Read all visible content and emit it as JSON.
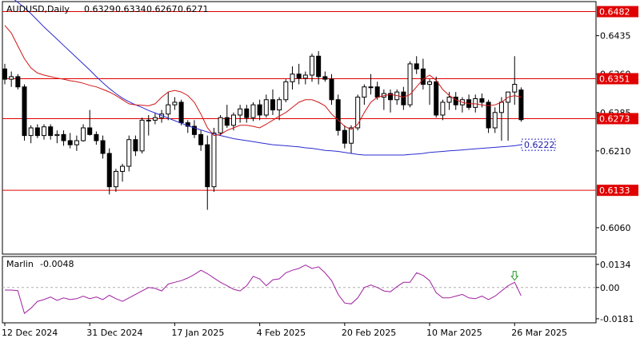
{
  "chart_data": [
    {
      "type": "candlestick",
      "header": {
        "symbol": "AUDUSD,Daily",
        "ohlc": [
          "0.6329",
          "0.6334",
          "0.6267",
          "0.6271"
        ]
      },
      "ylim": [
        0.601,
        0.65
      ],
      "y_ticks": [
        {
          "value": 0.6435,
          "label": "0.6435"
        },
        {
          "value": 0.636,
          "label": "0.6360"
        },
        {
          "value": 0.6285,
          "label": "0.6285"
        },
        {
          "value": 0.621,
          "label": "0.6210"
        },
        {
          "value": 0.606,
          "label": "0.6060"
        }
      ],
      "levels": [
        {
          "value": 0.6482,
          "label": "0.6482"
        },
        {
          "value": 0.6351,
          "label": "0.6351"
        },
        {
          "value": 0.6273,
          "label": "0.6273"
        },
        {
          "value": 0.6133,
          "label": "0.6133"
        }
      ],
      "ma_projection_label": "0.6222",
      "x_labels": [
        "12 Dec 2024",
        "31 Dec 2024",
        "17 Jan 2025",
        "4 Feb 2025",
        "20 Feb 2025",
        "10 Mar 2025",
        "26 Mar 2025"
      ],
      "x_label_index": [
        0,
        13,
        26,
        39,
        52,
        65,
        78
      ],
      "candles": [
        [
          0.637,
          0.638,
          0.634,
          0.635
        ],
        [
          0.635,
          0.6365,
          0.6335,
          0.6355
        ],
        [
          0.6355,
          0.636,
          0.633,
          0.6335
        ],
        [
          0.6335,
          0.634,
          0.623,
          0.624
        ],
        [
          0.624,
          0.626,
          0.6225,
          0.6255
        ],
        [
          0.6255,
          0.6262,
          0.6235,
          0.624
        ],
        [
          0.624,
          0.6262,
          0.6232,
          0.6257
        ],
        [
          0.6257,
          0.6262,
          0.6232,
          0.624
        ],
        [
          0.624,
          0.625,
          0.6225,
          0.6242
        ],
        [
          0.6242,
          0.625,
          0.622,
          0.623
        ],
        [
          0.623,
          0.6245,
          0.6215,
          0.6222
        ],
        [
          0.6222,
          0.624,
          0.621,
          0.623
        ],
        [
          0.623,
          0.6262,
          0.6228,
          0.6255
        ],
        [
          0.6255,
          0.629,
          0.624,
          0.6242
        ],
        [
          0.6242,
          0.6248,
          0.6222,
          0.623
        ],
        [
          0.623,
          0.624,
          0.6195,
          0.6205
        ],
        [
          0.6205,
          0.6215,
          0.6125,
          0.614
        ],
        [
          0.614,
          0.6175,
          0.613,
          0.617
        ],
        [
          0.617,
          0.6185,
          0.615,
          0.618
        ],
        [
          0.618,
          0.624,
          0.617,
          0.6232
        ],
        [
          0.6232,
          0.624,
          0.62,
          0.621
        ],
        [
          0.621,
          0.6275,
          0.6205,
          0.627
        ],
        [
          0.627,
          0.628,
          0.624,
          0.627
        ],
        [
          0.627,
          0.6285,
          0.6262,
          0.6275
        ],
        [
          0.6275,
          0.629,
          0.6265,
          0.6282
        ],
        [
          0.6282,
          0.6325,
          0.627,
          0.63
        ],
        [
          0.63,
          0.6315,
          0.629,
          0.6305
        ],
        [
          0.6305,
          0.631,
          0.626,
          0.6265
        ],
        [
          0.6265,
          0.627,
          0.6245,
          0.6258
        ],
        [
          0.6258,
          0.627,
          0.6235,
          0.6242
        ],
        [
          0.6242,
          0.625,
          0.621,
          0.6222
        ],
        [
          0.6222,
          0.624,
          0.6095,
          0.614
        ],
        [
          0.614,
          0.6255,
          0.613,
          0.6245
        ],
        [
          0.6245,
          0.628,
          0.624,
          0.6275
        ],
        [
          0.6275,
          0.63,
          0.6255,
          0.626
        ],
        [
          0.626,
          0.6285,
          0.625,
          0.628
        ],
        [
          0.628,
          0.63,
          0.6265,
          0.6292
        ],
        [
          0.6292,
          0.63,
          0.6265,
          0.6275
        ],
        [
          0.6275,
          0.6305,
          0.6268,
          0.63
        ],
        [
          0.63,
          0.631,
          0.627,
          0.628
        ],
        [
          0.628,
          0.632,
          0.6275,
          0.631
        ],
        [
          0.631,
          0.633,
          0.628,
          0.629
        ],
        [
          0.629,
          0.6315,
          0.627,
          0.631
        ],
        [
          0.631,
          0.635,
          0.6305,
          0.6345
        ],
        [
          0.6345,
          0.6375,
          0.633,
          0.636
        ],
        [
          0.636,
          0.638,
          0.634,
          0.6352
        ],
        [
          0.6352,
          0.6365,
          0.634,
          0.6358
        ],
        [
          0.6358,
          0.64,
          0.6345,
          0.6395
        ],
        [
          0.6395,
          0.6405,
          0.634,
          0.6355
        ],
        [
          0.6355,
          0.6365,
          0.6345,
          0.635
        ],
        [
          0.635,
          0.636,
          0.63,
          0.631
        ],
        [
          0.631,
          0.632,
          0.624,
          0.625
        ],
        [
          0.625,
          0.626,
          0.6215,
          0.6225
        ],
        [
          0.6225,
          0.626,
          0.6205,
          0.6255
        ],
        [
          0.6255,
          0.632,
          0.625,
          0.6315
        ],
        [
          0.6315,
          0.634,
          0.63,
          0.6335
        ],
        [
          0.6335,
          0.636,
          0.632,
          0.6335
        ],
        [
          0.6335,
          0.6345,
          0.631,
          0.6315
        ],
        [
          0.6315,
          0.633,
          0.629,
          0.6322
        ],
        [
          0.6322,
          0.633,
          0.6285,
          0.631
        ],
        [
          0.631,
          0.633,
          0.63,
          0.6325
        ],
        [
          0.6325,
          0.6335,
          0.629,
          0.63
        ],
        [
          0.63,
          0.6385,
          0.6295,
          0.638
        ],
        [
          0.638,
          0.6395,
          0.636,
          0.637
        ],
        [
          0.637,
          0.639,
          0.633,
          0.634
        ],
        [
          0.634,
          0.635,
          0.63,
          0.6345
        ],
        [
          0.6345,
          0.6355,
          0.6275,
          0.628
        ],
        [
          0.628,
          0.631,
          0.627,
          0.6305
        ],
        [
          0.6305,
          0.6325,
          0.629,
          0.6315
        ],
        [
          0.6315,
          0.6325,
          0.629,
          0.63
        ],
        [
          0.63,
          0.6315,
          0.6285,
          0.631
        ],
        [
          0.631,
          0.632,
          0.629,
          0.6295
        ],
        [
          0.6295,
          0.632,
          0.6285,
          0.6312
        ],
        [
          0.6312,
          0.6322,
          0.6295,
          0.6305
        ],
        [
          0.6305,
          0.631,
          0.6245,
          0.6255
        ],
        [
          0.6255,
          0.6295,
          0.6245,
          0.6285
        ],
        [
          0.6285,
          0.6315,
          0.623,
          0.6305
        ],
        [
          0.6305,
          0.6325,
          0.623,
          0.6325
        ],
        [
          0.6325,
          0.6395,
          0.63,
          0.634
        ],
        [
          0.6329,
          0.6334,
          0.6267,
          0.6271
        ]
      ],
      "ma_fast": [
        0.6455,
        0.644,
        0.6415,
        0.639,
        0.6372,
        0.6362,
        0.6358,
        0.6355,
        0.6352,
        0.635,
        0.6347,
        0.6345,
        0.6342,
        0.6338,
        0.6335,
        0.633,
        0.6325,
        0.6318,
        0.631,
        0.6302,
        0.63,
        0.6299,
        0.6298,
        0.6302,
        0.6315,
        0.6325,
        0.6328,
        0.6325,
        0.6318,
        0.6305,
        0.6282,
        0.6255,
        0.624,
        0.6242,
        0.625,
        0.6255,
        0.626,
        0.626,
        0.6258,
        0.6255,
        0.6262,
        0.627,
        0.6278,
        0.6285,
        0.6295,
        0.6305,
        0.631,
        0.631,
        0.6305,
        0.6298,
        0.6282,
        0.627,
        0.6258,
        0.6252,
        0.6262,
        0.6285,
        0.6305,
        0.6315,
        0.6318,
        0.632,
        0.6318,
        0.6315,
        0.632,
        0.6335,
        0.635,
        0.6358,
        0.6348,
        0.633,
        0.6318,
        0.631,
        0.6305,
        0.6302,
        0.6302,
        0.63,
        0.6298,
        0.63,
        0.6305,
        0.6315,
        0.6318,
        0.6315
      ],
      "ma_slow": [
        0.652,
        0.651,
        0.65,
        0.649,
        0.6478,
        0.6465,
        0.6452,
        0.644,
        0.6428,
        0.6416,
        0.6404,
        0.6392,
        0.638,
        0.6368,
        0.6355,
        0.6343,
        0.6332,
        0.6322,
        0.6313,
        0.6306,
        0.63,
        0.6295,
        0.6289,
        0.6284,
        0.6279,
        0.6274,
        0.6269,
        0.6264,
        0.6259,
        0.6255,
        0.6251,
        0.6247,
        0.6243,
        0.624,
        0.6237,
        0.6234,
        0.6232,
        0.623,
        0.6228,
        0.6226,
        0.6224,
        0.6222,
        0.6221,
        0.622,
        0.6219,
        0.6218,
        0.6216,
        0.6215,
        0.6213,
        0.6211,
        0.621,
        0.6209,
        0.6207,
        0.6205,
        0.6203,
        0.6202,
        0.6202,
        0.6202,
        0.6202,
        0.6202,
        0.6202,
        0.6202,
        0.6203,
        0.6204,
        0.6205,
        0.6207,
        0.6208,
        0.6209,
        0.621,
        0.6211,
        0.6212,
        0.6213,
        0.6214,
        0.6215,
        0.6216,
        0.6217,
        0.6218,
        0.6219,
        0.622,
        0.6222
      ],
      "ma_projection_end": 0.6222
    },
    {
      "type": "line",
      "indicator_name": "Marlin",
      "indicator_value": "-0.0048",
      "ylim": [
        -0.02,
        0.0175
      ],
      "y_ticks": [
        {
          "value": 0.0134,
          "label": "0.0134"
        },
        {
          "value": 0.0,
          "label": "0.00"
        },
        {
          "value": -0.0181,
          "label": "-0.0181"
        }
      ],
      "values": [
        -0.0015,
        -0.0015,
        -0.0018,
        -0.015,
        -0.012,
        -0.008,
        -0.007,
        -0.0055,
        -0.0075,
        -0.006,
        -0.007,
        -0.0065,
        -0.005,
        -0.0065,
        -0.0055,
        -0.007,
        -0.0045,
        -0.0065,
        -0.008,
        -0.006,
        -0.004,
        -0.002,
        0.0,
        -0.0005,
        -0.002,
        0.002,
        0.003,
        0.004,
        0.0055,
        0.0075,
        0.01,
        0.008,
        0.0055,
        0.003,
        0.001,
        -0.001,
        -0.002,
        0.001,
        0.0065,
        0.005,
        0.001,
        0.0045,
        0.005,
        0.0085,
        0.01,
        0.011,
        0.013,
        0.011,
        0.012,
        0.0085,
        0.004,
        -0.004,
        -0.009,
        -0.0095,
        -0.006,
        0.0,
        0.0015,
        0.0,
        -0.002,
        -0.0025,
        0.0005,
        0.003,
        0.003,
        0.0085,
        0.007,
        0.004,
        -0.003,
        -0.006,
        -0.006,
        -0.005,
        -0.004,
        -0.006,
        -0.0065,
        -0.005,
        -0.007,
        -0.005,
        -0.002,
        0.001,
        0.003,
        -0.0048
      ],
      "signal_arrow_index": 78
    }
  ]
}
